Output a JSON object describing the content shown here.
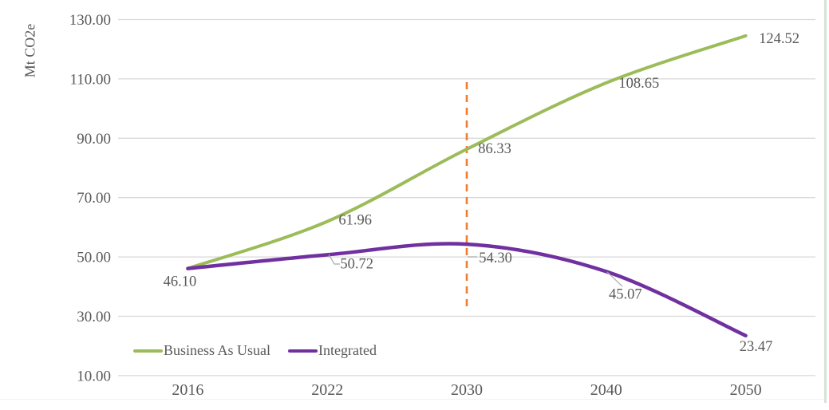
{
  "page": {
    "background": "#ffffff",
    "right_border_color": "#d5e3d5",
    "bottom_border_color": "#e3ebe4"
  },
  "chart_data": {
    "type": "line",
    "title": "",
    "xlabel": "",
    "ylabel": "Mt CO2e",
    "categories": [
      "2016",
      "2022",
      "2030",
      "2040",
      "2050"
    ],
    "y_ticks": [
      "130.00",
      "110.00",
      "90.00",
      "70.00",
      "50.00",
      "30.00",
      "10.00"
    ],
    "ylim": [
      10,
      130
    ],
    "grid": true,
    "gridline_color": "#D9D9D9",
    "axis_text_color": "#595959",
    "legend_position": "bottom-left",
    "line_style": "smooth",
    "series": [
      {
        "name": "Business As Usual",
        "color": "#9CBB59",
        "values": [
          46.1,
          61.96,
          86.33,
          108.65,
          124.52
        ],
        "labels": [
          "46.10",
          "61.96",
          "86.33",
          "108.65",
          "124.52"
        ]
      },
      {
        "name": "Integrated",
        "color": "#7030A0",
        "values": [
          46.1,
          50.72,
          54.3,
          45.07,
          23.47
        ],
        "labels": [
          null,
          "50.72",
          "54.30",
          "45.07",
          "23.47"
        ]
      }
    ],
    "annotation": {
      "type": "vline",
      "category": "2030",
      "color": "#ED7D31",
      "style": "dashed"
    },
    "leader_line_color": "#A6A6A6",
    "data_label_color": "#595959"
  }
}
